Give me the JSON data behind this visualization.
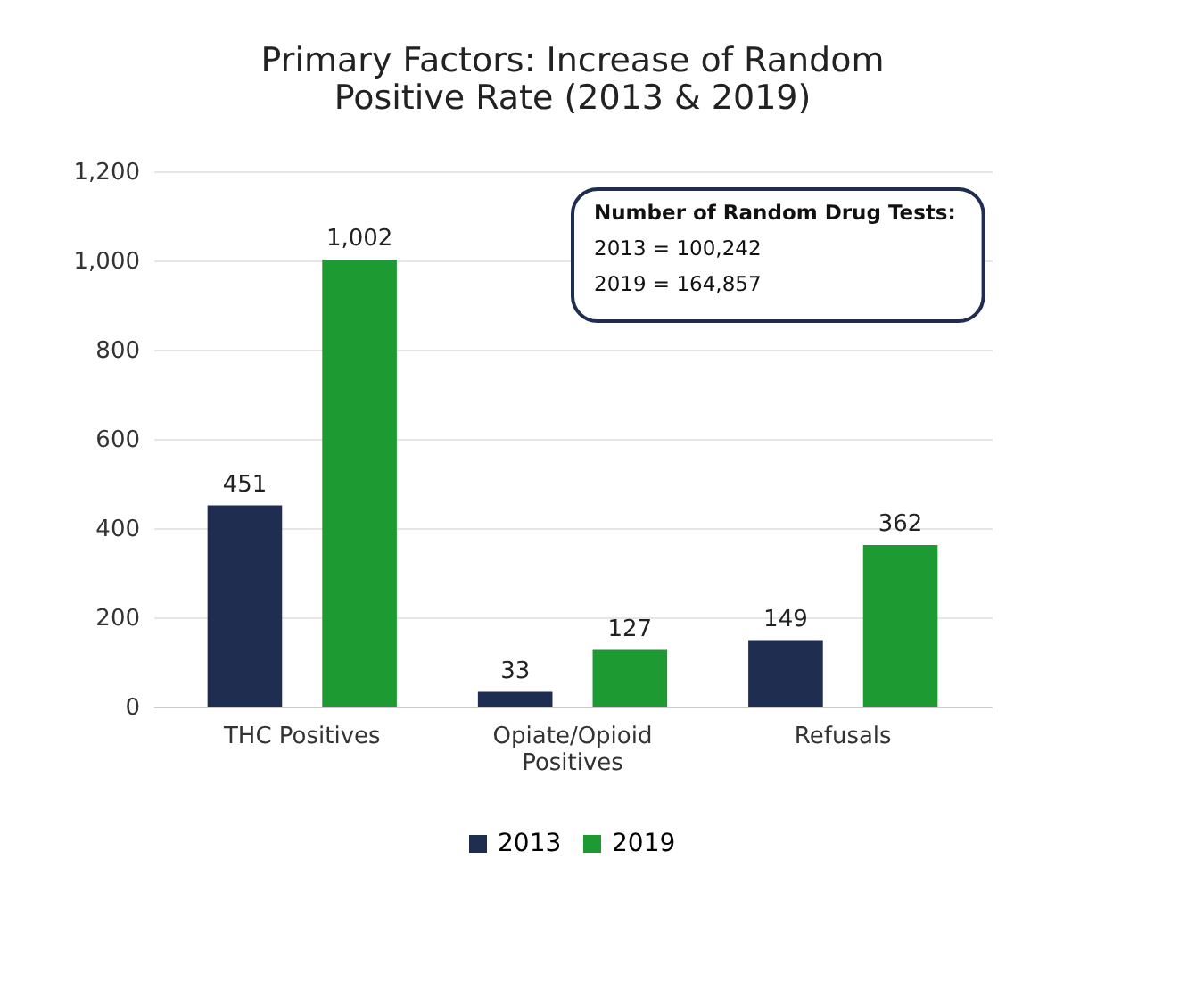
{
  "chart_data": {
    "type": "bar",
    "title": "Primary Factors: Increase of Random Positive Rate (2013 & 2019)",
    "categories": [
      "THC Positives",
      "Opiate/Opioid Positives",
      "Refusals"
    ],
    "series": [
      {
        "name": "2013",
        "color": "#1f2d50",
        "values": [
          451,
          33,
          149
        ],
        "value_labels": [
          "451",
          "33",
          "149"
        ]
      },
      {
        "name": "2019",
        "color": "#1e9a32",
        "values": [
          1002,
          127,
          362
        ],
        "value_labels": [
          "1,002",
          "127",
          "362"
        ]
      }
    ],
    "ylim": [
      0,
      1200
    ],
    "yticks": [
      0,
      200,
      400,
      600,
      800,
      {
        "value": 1000,
        "label": "1,000"
      },
      {
        "value": 1200,
        "label": "1,200"
      }
    ],
    "grid": "y",
    "legend": "bottom",
    "annotations": [
      "Number of Random Drug Tests:",
      "2013 = 100,242",
      "2019 = 164,857"
    ]
  }
}
